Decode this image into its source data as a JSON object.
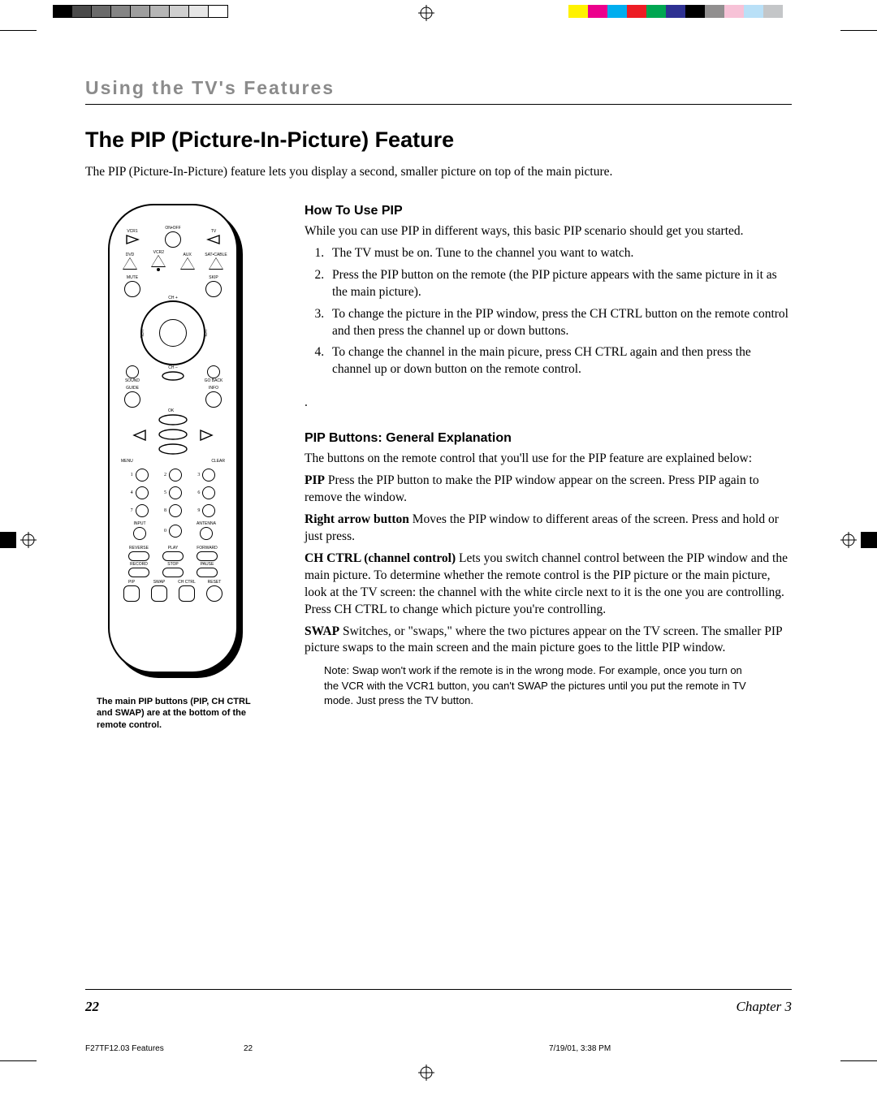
{
  "reg_bars": {
    "left_colors": [
      "#000000",
      "#4a4a4a",
      "#6a6a6a",
      "#858585",
      "#9e9e9e",
      "#b6b6b6",
      "#cfcfcf",
      "#e6e6e6",
      "#ffffff"
    ],
    "left_border": "#000000",
    "right_colors": [
      "#ffffff",
      "#fff200",
      "#ec008c",
      "#00aeef",
      "#ed1c24",
      "#00a651",
      "#2e3192",
      "#000000",
      "#918f8f",
      "#f7c2d7",
      "#b9e0f7",
      "#c4c6c8"
    ]
  },
  "section_title": "Using the TV's Features",
  "page_title": "The PIP (Picture-In-Picture) Feature",
  "intro": "The PIP (Picture-In-Picture) feature lets you display a second, smaller picture on top of the main picture.",
  "remote": {
    "row1": [
      "VCR1",
      "ON•OFF",
      "TV"
    ],
    "row2": [
      "DVD",
      "VCR2",
      "AUX",
      "SAT•CABLE"
    ],
    "row3_left": "MUTE",
    "row3_right": "SKIP",
    "ring1": {
      "top": "CH +",
      "bottom": "CH –",
      "left": "VOL",
      "right": "VOL"
    },
    "below_ring1_left": "SOUND",
    "below_ring1_right": "GO BACK",
    "guide_info": {
      "left": "GUIDE",
      "right": "INFO"
    },
    "ok": "OK",
    "menu_clear": {
      "left": "MENU",
      "right": "CLEAR"
    },
    "keypad": [
      "1",
      "2",
      "3",
      "4",
      "5",
      "6",
      "7",
      "8",
      "9"
    ],
    "input": "INPUT",
    "zero": "0",
    "antenna": "ANTENNA",
    "transport1": [
      "REVERSE",
      "PLAY",
      "FORWARD"
    ],
    "transport2": [
      "RECORD",
      "STOP",
      "PAUSE"
    ],
    "bottom_row": [
      "PIP",
      "SWAP",
      "CH CTRL",
      "RESET"
    ]
  },
  "remote_caption": "The main PIP buttons (PIP, CH CTRL and SWAP) are at the bottom of the remote control.",
  "how_to": {
    "heading": "How To Use PIP",
    "intro": "While you can use PIP in different ways, this basic PIP scenario should get you started.",
    "steps": [
      "The TV must be on. Tune to the channel you want to watch.",
      "Press the PIP button on the remote (the PIP picture appears with the same picture in it as the main picture).",
      "To change the picture in the PIP window, press the CH CTRL button on the remote control and then press the channel up or down buttons.",
      "To change the channel in the main picure, press CH CTRL again and then press the channel up or down button on the remote control."
    ]
  },
  "buttons_section": {
    "heading": "PIP Buttons: General Explanation",
    "intro": "The buttons on the remote control that you'll use for the PIP feature are explained below:",
    "items": [
      {
        "term": "PIP",
        "text": "  Press the PIP button to make the PIP window appear on the screen. Press PIP again to remove the window."
      },
      {
        "term": "Right arrow button",
        "text": "  Moves the PIP window to different areas of the screen. Press and hold or just press."
      },
      {
        "term": "CH CTRL (channel control)",
        "text": " Lets you switch channel control between the PIP window and the main picture. To determine whether the remote control is the PIP picture or the main picture, look at the TV screen: the channel with the white circle next to it is the one you are controlling. Press CH CTRL to change which picture you're controlling."
      },
      {
        "term": "SWAP",
        "text": "  Switches, or \"swaps,\" where the two pictures appear on the TV screen. The smaller PIP picture swaps to the main screen and the main picture goes to the little PIP window."
      }
    ],
    "note": "Note: Swap won't work if the remote is in the wrong mode. For example, once you turn on the VCR with the VCR1 button, you can't SWAP the pictures until you put the remote in TV mode. Just press the TV button."
  },
  "footer": {
    "page_number": "22",
    "chapter": "Chapter 3",
    "file": "F27TF12.03 Features",
    "slug_page": "22",
    "timestamp": "7/19/01, 3:38 PM"
  }
}
